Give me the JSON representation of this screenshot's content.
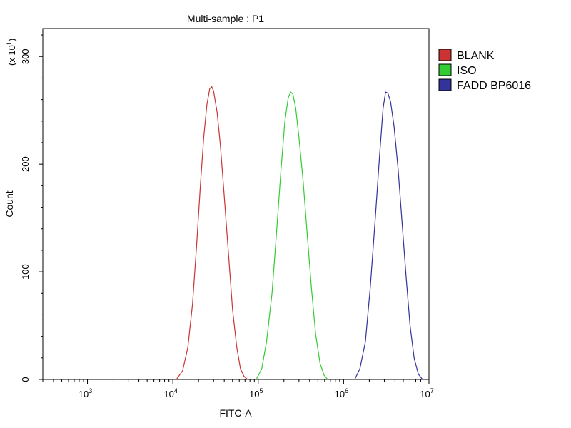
{
  "chart_data": {
    "type": "line",
    "title": "Multi-sample : P1",
    "xlabel": "FITC-A",
    "ylabel": "Count",
    "y_multiplier": "(x 10",
    "y_multiplier_exp": "1",
    "y_multiplier_close": ")",
    "x_scale": "log",
    "xlim": [
      300,
      10000000
    ],
    "ylim": [
      0,
      326
    ],
    "x_ticks": [
      {
        "value": 1000,
        "base": "10",
        "exp": "3"
      },
      {
        "value": 10000,
        "base": "10",
        "exp": "4"
      },
      {
        "value": 100000,
        "base": "10",
        "exp": "5"
      },
      {
        "value": 1000000,
        "base": "10",
        "exp": "6"
      },
      {
        "value": 10000000,
        "base": "10",
        "exp": "7"
      }
    ],
    "y_ticks": [
      0,
      100,
      200,
      300
    ],
    "legend_position": "top-right",
    "grid": false,
    "series": [
      {
        "name": "BLANK",
        "color": "#cc3333",
        "x": [
          11000,
          13000,
          15000,
          17000,
          19000,
          21000,
          23000,
          25000,
          27000,
          28500,
          30000,
          33000,
          36000,
          40000,
          45000,
          50000,
          56000,
          62000,
          68000,
          75000
        ],
        "y": [
          0,
          8,
          30,
          70,
          125,
          180,
          225,
          255,
          270,
          272,
          268,
          248,
          218,
          170,
          115,
          65,
          30,
          10,
          3,
          0
        ]
      },
      {
        "name": "ISO",
        "color": "#33cc33",
        "x": [
          95000,
          110000,
          125000,
          145000,
          165000,
          185000,
          205000,
          225000,
          240000,
          255000,
          275000,
          300000,
          335000,
          375000,
          420000,
          470000,
          530000,
          590000,
          650000
        ],
        "y": [
          0,
          10,
          35,
          80,
          140,
          195,
          240,
          262,
          267,
          265,
          252,
          225,
          185,
          135,
          85,
          42,
          15,
          4,
          0
        ]
      },
      {
        "name": "FADD BP6016",
        "color": "#333399",
        "x": [
          1350000,
          1550000,
          1800000,
          2050000,
          2350000,
          2650000,
          2900000,
          3100000,
          3300000,
          3550000,
          3900000,
          4350000,
          4850000,
          5400000,
          6000000,
          6700000,
          7500000,
          8400000
        ],
        "y": [
          0,
          10,
          35,
          85,
          150,
          210,
          252,
          267,
          266,
          258,
          235,
          195,
          145,
          95,
          50,
          20,
          5,
          0
        ]
      }
    ]
  }
}
